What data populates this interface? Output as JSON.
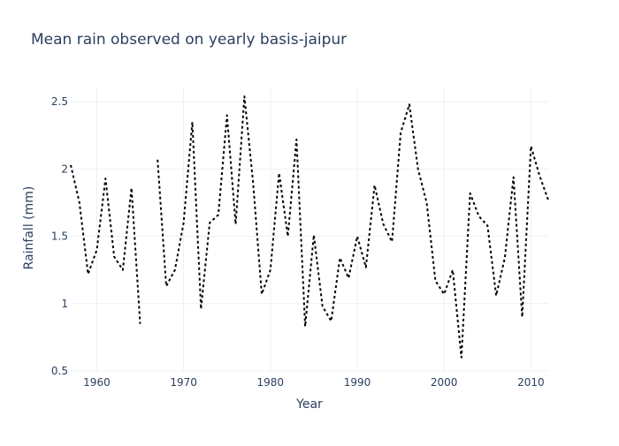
{
  "chart_data": {
    "type": "line",
    "title": "Mean rain observed on yearly basis-jaipur",
    "xlabel": "Year",
    "ylabel": "Rainfall (mm)",
    "xlim": [
      1957,
      2012
    ],
    "ylim": [
      0.5,
      2.6
    ],
    "xticks": [
      1960,
      1970,
      1980,
      1990,
      2000,
      2010
    ],
    "xtick_labels": [
      "1960",
      "1970",
      "1980",
      "1990",
      "2000",
      "2010"
    ],
    "yticks": [
      0.5,
      1,
      1.5,
      2,
      2.5
    ],
    "ytick_labels": [
      "0.5",
      "1",
      "1.5",
      "2",
      "2.5"
    ],
    "grid": true,
    "line_style": "dotted",
    "line_color": "#000000",
    "series": [
      {
        "x": [
          1957,
          1958,
          1959,
          1960,
          1961,
          1962,
          1963,
          1964,
          1965,
          1966,
          1967,
          1968,
          1969,
          1970,
          1971,
          1972,
          1973,
          1974,
          1975,
          1976,
          1977,
          1978,
          1979,
          1980,
          1981,
          1982,
          1983,
          1984,
          1985,
          1986,
          1987,
          1988,
          1989,
          1990,
          1991,
          1992,
          1993,
          1994,
          1995,
          1996,
          1997,
          1998,
          1999,
          2000,
          2001,
          2002,
          2003,
          2004,
          2005,
          2006,
          2007,
          2008,
          2009,
          2010,
          2011,
          2012
        ],
        "values": [
          2.03,
          1.75,
          1.22,
          1.4,
          1.93,
          1.35,
          1.25,
          1.86,
          0.85,
          null,
          2.07,
          1.13,
          1.25,
          1.6,
          2.35,
          0.96,
          1.6,
          1.66,
          2.4,
          1.59,
          2.54,
          1.9,
          1.07,
          1.25,
          1.97,
          1.5,
          2.22,
          0.83,
          1.51,
          0.98,
          0.87,
          1.34,
          1.19,
          1.5,
          1.27,
          1.88,
          1.59,
          1.46,
          2.27,
          2.48,
          2.0,
          1.75,
          1.17,
          1.07,
          1.25,
          0.6,
          1.82,
          1.65,
          1.58,
          1.06,
          1.34,
          1.94,
          0.9,
          2.17,
          1.95,
          1.77
        ]
      }
    ]
  }
}
